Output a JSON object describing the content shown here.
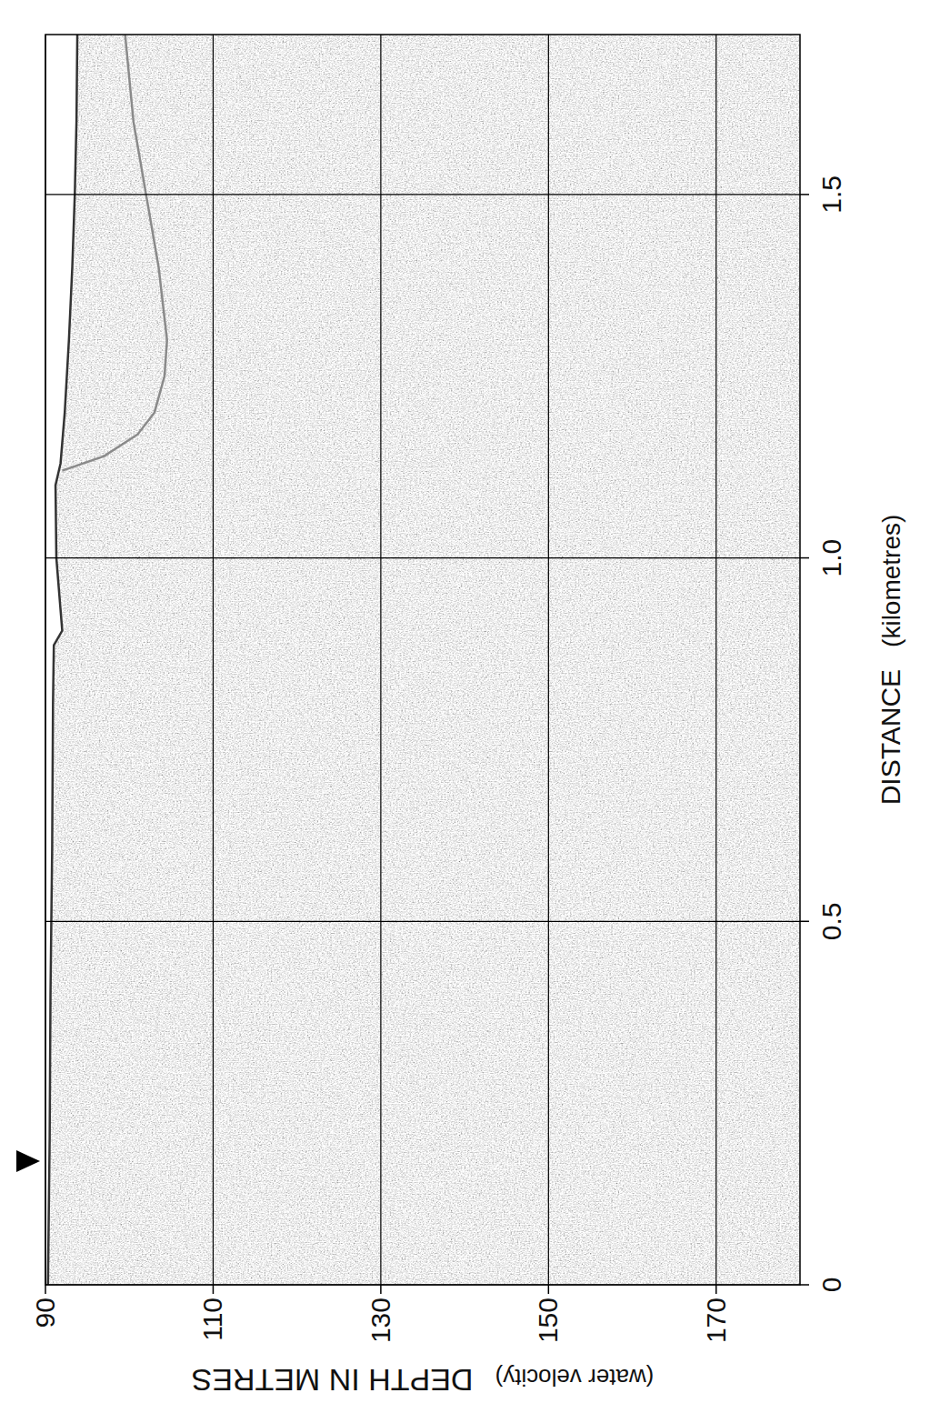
{
  "chart_data": {
    "type": "seismic_profile",
    "x_label": "DISTANCE",
    "x_unit_label": "(kilometres)",
    "y_label": "DEPTH IN METRES",
    "y_unit_label": "(water velocity)",
    "xlim": [
      0,
      1.72
    ],
    "ylim": [
      90,
      180
    ],
    "xticks": [
      0,
      0.5,
      {
        "value": 1,
        "label": "1.0"
      },
      1.5
    ],
    "yticks": [
      90,
      110,
      130,
      150,
      170
    ],
    "grid": true,
    "marker_x": 0.17,
    "series": [
      {
        "color": "#333333",
        "line_style": "solid",
        "x": [
          0,
          0.2,
          0.4,
          0.6,
          0.8,
          0.88,
          0.9,
          1.0,
          1.1,
          1.13,
          1.2,
          1.3,
          1.4,
          1.5,
          1.6,
          1.72
        ],
        "values": [
          90.3,
          90.5,
          90.6,
          90.8,
          90.9,
          91.0,
          92.0,
          91.3,
          91.2,
          91.8,
          92.3,
          92.8,
          93.2,
          93.5,
          93.7,
          93.8
        ]
      },
      {
        "color": "#8a8a8a",
        "line_style": "solid",
        "x": [
          1.12,
          1.14,
          1.17,
          1.2,
          1.25,
          1.3,
          1.4,
          1.5,
          1.6,
          1.72
        ],
        "values": [
          92.0,
          97,
          101,
          103,
          104.2,
          104.5,
          103.5,
          102,
          100.5,
          99.5
        ]
      }
    ]
  }
}
